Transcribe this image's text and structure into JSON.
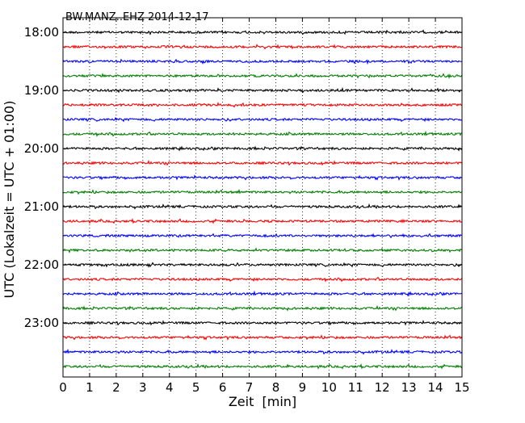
{
  "chart_data": {
    "type": "line",
    "title": "BW.MANZ..EHZ 2014-12-17",
    "xlabel": "Zeit  [min]",
    "ylabel": "UTC (Lokalzeit = UTC + 01:00)",
    "xlim": [
      0,
      15
    ],
    "x_ticks": [
      "0",
      "1",
      "2",
      "3",
      "4",
      "5",
      "6",
      "7",
      "8",
      "9",
      "10",
      "11",
      "12",
      "13",
      "14",
      "15"
    ],
    "y_ticks": [
      "18:00",
      "19:00",
      "20:00",
      "21:00",
      "22:00",
      "23:00"
    ],
    "grid": "vertical-dotted",
    "trace_interval_min": 15,
    "series": [
      {
        "start": "18:00",
        "color": "#000000"
      },
      {
        "start": "18:15",
        "color": "#ff0000"
      },
      {
        "start": "18:30",
        "color": "#0000ff"
      },
      {
        "start": "18:45",
        "color": "#008000"
      },
      {
        "start": "19:00",
        "color": "#000000"
      },
      {
        "start": "19:15",
        "color": "#ff0000"
      },
      {
        "start": "19:30",
        "color": "#0000ff"
      },
      {
        "start": "19:45",
        "color": "#008000"
      },
      {
        "start": "20:00",
        "color": "#000000"
      },
      {
        "start": "20:15",
        "color": "#ff0000"
      },
      {
        "start": "20:30",
        "color": "#0000ff"
      },
      {
        "start": "20:45",
        "color": "#008000"
      },
      {
        "start": "21:00",
        "color": "#000000"
      },
      {
        "start": "21:15",
        "color": "#ff0000"
      },
      {
        "start": "21:30",
        "color": "#0000ff"
      },
      {
        "start": "21:45",
        "color": "#008000"
      },
      {
        "start": "22:00",
        "color": "#000000"
      },
      {
        "start": "22:15",
        "color": "#ff0000"
      },
      {
        "start": "22:30",
        "color": "#0000ff"
      },
      {
        "start": "22:45",
        "color": "#008000"
      },
      {
        "start": "23:00",
        "color": "#000000"
      },
      {
        "start": "23:15",
        "color": "#ff0000"
      },
      {
        "start": "23:30",
        "color": "#0000ff"
      },
      {
        "start": "23:45",
        "color": "#008000"
      }
    ]
  }
}
